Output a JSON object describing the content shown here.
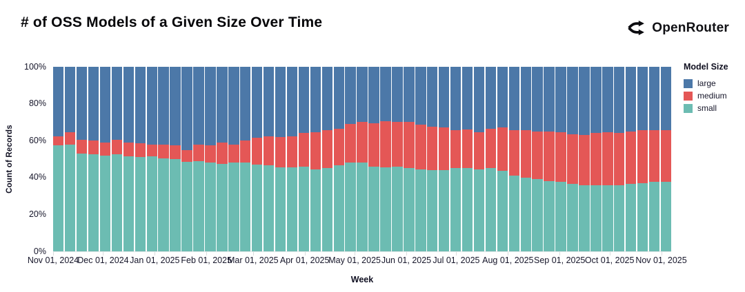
{
  "header": {
    "title": "# of OSS Models of a Given Size Over Time",
    "brand_name": "OpenRouter"
  },
  "chart_data": {
    "type": "bar",
    "variant": "stacked-normalized-100pct",
    "title": "# of OSS Models of a Given Size Over Time",
    "xlabel": "Week",
    "ylabel": "Count of Records",
    "ylim": [
      0,
      100
    ],
    "grid": false,
    "y_tick_labels": [
      "0%",
      "20%",
      "40%",
      "60%",
      "80%",
      "100%"
    ],
    "x_tick_labels": [
      {
        "label": "Nov 01, 2024",
        "day": 0
      },
      {
        "label": "Dec 01, 2024",
        "day": 30
      },
      {
        "label": "Jan 01, 2025",
        "day": 61
      },
      {
        "label": "Feb 01, 2025",
        "day": 92
      },
      {
        "label": "Mar 01, 2025",
        "day": 120
      },
      {
        "label": "Apr 01, 2025",
        "day": 151
      },
      {
        "label": "May 01, 2025",
        "day": 181
      },
      {
        "label": "Jun 01, 2025",
        "day": 212
      },
      {
        "label": "Jul 01, 2025",
        "day": 242
      },
      {
        "label": "Aug 01, 2025",
        "day": 273
      },
      {
        "label": "Sep 01, 2025",
        "day": 304
      },
      {
        "label": "Oct 01, 2025",
        "day": 334
      },
      {
        "label": "Nov 01, 2025",
        "day": 365
      }
    ],
    "axis_span_days": 371,
    "legend": {
      "title": "Model Size",
      "position": "right",
      "entries": [
        {
          "label": "large",
          "color": "#4c78a8"
        },
        {
          "label": "medium",
          "color": "#e45756"
        },
        {
          "label": "small",
          "color": "#6cbcb2"
        }
      ]
    },
    "stack_order_top_to_bottom": [
      "large",
      "medium",
      "small"
    ],
    "weeks": [
      {
        "week": "2024-11-01",
        "small": 57.5,
        "medium": 5.0,
        "large": 37.5
      },
      {
        "week": "2024-11-08",
        "small": 58.0,
        "medium": 6.5,
        "large": 35.5
      },
      {
        "week": "2024-11-15",
        "small": 53.0,
        "medium": 7.5,
        "large": 39.5
      },
      {
        "week": "2024-11-22",
        "small": 52.5,
        "medium": 7.5,
        "large": 40.0
      },
      {
        "week": "2024-11-29",
        "small": 52.0,
        "medium": 7.0,
        "large": 41.0
      },
      {
        "week": "2024-12-06",
        "small": 52.5,
        "medium": 8.0,
        "large": 39.5
      },
      {
        "week": "2024-12-13",
        "small": 51.5,
        "medium": 7.5,
        "large": 41.0
      },
      {
        "week": "2024-12-20",
        "small": 51.0,
        "medium": 7.5,
        "large": 41.5
      },
      {
        "week": "2024-12-27",
        "small": 51.5,
        "medium": 6.5,
        "large": 42.0
      },
      {
        "week": "2025-01-03",
        "small": 50.5,
        "medium": 7.5,
        "large": 42.0
      },
      {
        "week": "2025-01-10",
        "small": 50.0,
        "medium": 7.5,
        "large": 42.5
      },
      {
        "week": "2025-01-17",
        "small": 48.5,
        "medium": 6.5,
        "large": 45.0
      },
      {
        "week": "2025-01-24",
        "small": 49.0,
        "medium": 9.0,
        "large": 42.0
      },
      {
        "week": "2025-01-31",
        "small": 48.0,
        "medium": 9.5,
        "large": 42.5
      },
      {
        "week": "2025-02-07",
        "small": 47.5,
        "medium": 11.5,
        "large": 41.0
      },
      {
        "week": "2025-02-14",
        "small": 48.0,
        "medium": 10.0,
        "large": 42.0
      },
      {
        "week": "2025-02-21",
        "small": 48.0,
        "medium": 12.0,
        "large": 40.0
      },
      {
        "week": "2025-02-28",
        "small": 47.0,
        "medium": 14.5,
        "large": 38.5
      },
      {
        "week": "2025-03-07",
        "small": 46.5,
        "medium": 16.0,
        "large": 37.5
      },
      {
        "week": "2025-03-14",
        "small": 45.5,
        "medium": 16.5,
        "large": 38.0
      },
      {
        "week": "2025-03-21",
        "small": 45.5,
        "medium": 17.0,
        "large": 37.5
      },
      {
        "week": "2025-03-28",
        "small": 46.0,
        "medium": 18.0,
        "large": 36.0
      },
      {
        "week": "2025-04-04",
        "small": 44.5,
        "medium": 20.0,
        "large": 35.5
      },
      {
        "week": "2025-04-11",
        "small": 45.0,
        "medium": 20.5,
        "large": 34.5
      },
      {
        "week": "2025-04-18",
        "small": 46.5,
        "medium": 20.0,
        "large": 33.5
      },
      {
        "week": "2025-04-25",
        "small": 48.0,
        "medium": 21.0,
        "large": 31.0
      },
      {
        "week": "2025-05-02",
        "small": 48.0,
        "medium": 22.0,
        "large": 30.0
      },
      {
        "week": "2025-05-09",
        "small": 46.0,
        "medium": 23.5,
        "large": 30.5
      },
      {
        "week": "2025-05-16",
        "small": 45.5,
        "medium": 25.0,
        "large": 29.5
      },
      {
        "week": "2025-05-23",
        "small": 46.0,
        "medium": 24.0,
        "large": 30.0
      },
      {
        "week": "2025-05-30",
        "small": 45.0,
        "medium": 25.0,
        "large": 30.0
      },
      {
        "week": "2025-06-06",
        "small": 44.5,
        "medium": 24.0,
        "large": 31.5
      },
      {
        "week": "2025-06-13",
        "small": 44.0,
        "medium": 23.5,
        "large": 32.5
      },
      {
        "week": "2025-06-20",
        "small": 44.0,
        "medium": 23.0,
        "large": 33.0
      },
      {
        "week": "2025-06-27",
        "small": 45.0,
        "medium": 20.5,
        "large": 34.5
      },
      {
        "week": "2025-07-04",
        "small": 45.0,
        "medium": 21.0,
        "large": 34.0
      },
      {
        "week": "2025-07-11",
        "small": 44.5,
        "medium": 20.0,
        "large": 35.5
      },
      {
        "week": "2025-07-18",
        "small": 45.0,
        "medium": 21.5,
        "large": 33.5
      },
      {
        "week": "2025-07-25",
        "small": 43.5,
        "medium": 23.5,
        "large": 33.0
      },
      {
        "week": "2025-08-01",
        "small": 41.0,
        "medium": 24.5,
        "large": 34.5
      },
      {
        "week": "2025-08-08",
        "small": 40.0,
        "medium": 25.5,
        "large": 34.5
      },
      {
        "week": "2025-08-15",
        "small": 39.0,
        "medium": 26.0,
        "large": 35.0
      },
      {
        "week": "2025-08-22",
        "small": 38.0,
        "medium": 27.0,
        "large": 35.0
      },
      {
        "week": "2025-08-29",
        "small": 37.5,
        "medium": 27.0,
        "large": 35.5
      },
      {
        "week": "2025-09-05",
        "small": 36.5,
        "medium": 27.0,
        "large": 36.5
      },
      {
        "week": "2025-09-12",
        "small": 36.0,
        "medium": 27.0,
        "large": 37.0
      },
      {
        "week": "2025-09-19",
        "small": 36.0,
        "medium": 28.0,
        "large": 36.0
      },
      {
        "week": "2025-09-26",
        "small": 36.0,
        "medium": 28.5,
        "large": 35.5
      },
      {
        "week": "2025-10-03",
        "small": 36.0,
        "medium": 28.0,
        "large": 36.0
      },
      {
        "week": "2025-10-10",
        "small": 36.5,
        "medium": 28.5,
        "large": 35.0
      },
      {
        "week": "2025-10-17",
        "small": 37.0,
        "medium": 28.5,
        "large": 34.5
      },
      {
        "week": "2025-10-24",
        "small": 37.5,
        "medium": 28.0,
        "large": 34.5
      },
      {
        "week": "2025-10-31",
        "small": 37.5,
        "medium": 28.0,
        "large": 34.5
      }
    ]
  }
}
